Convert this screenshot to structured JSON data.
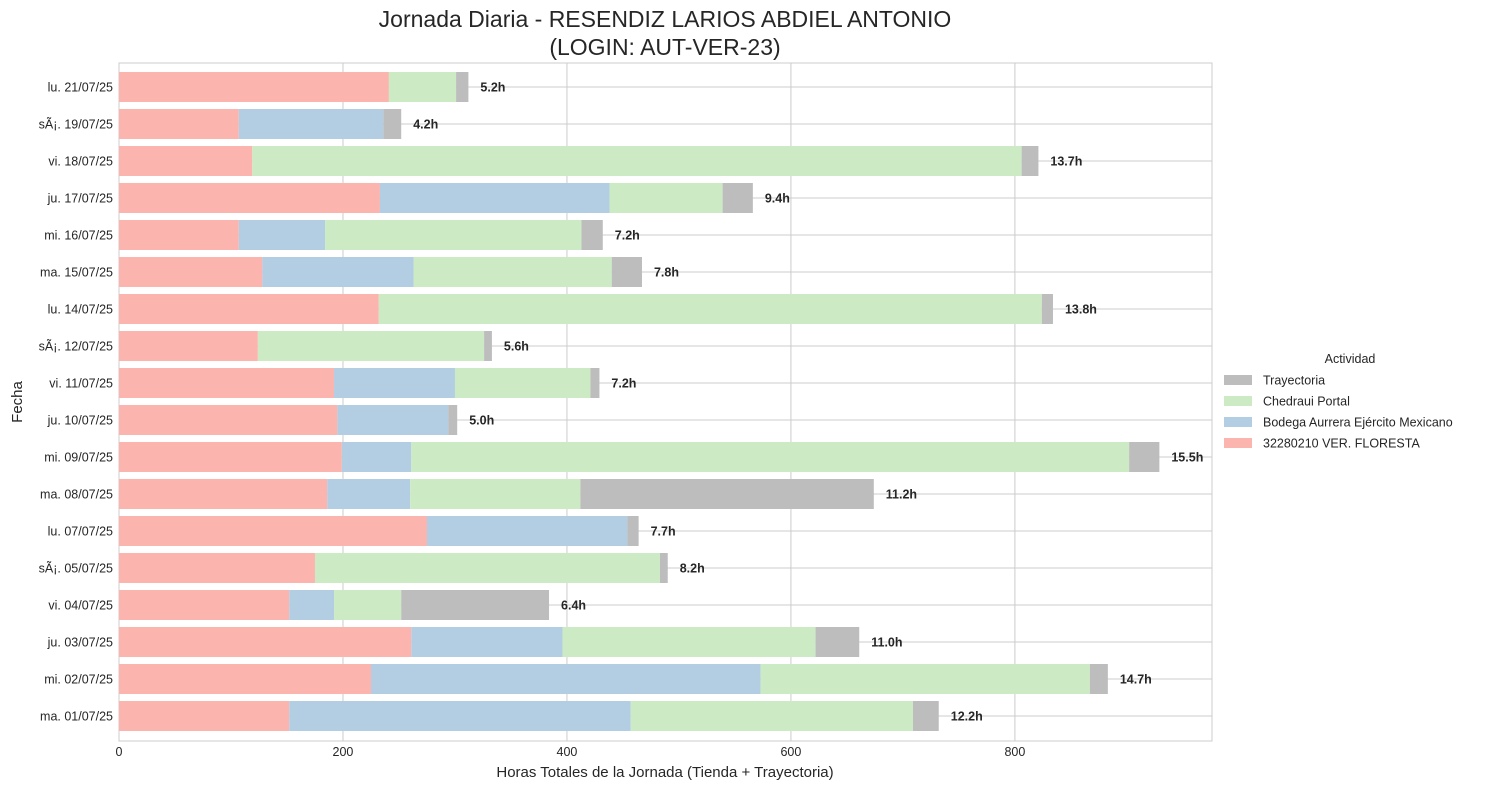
{
  "chart_data": {
    "type": "bar",
    "orientation": "horizontal",
    "stacked": true,
    "title_line1": "Jornada Diaria - RESENDIZ LARIOS ABDIEL ANTONIO",
    "title_line2": "(LOGIN: AUT-VER-23)",
    "xlabel": "Horas Totales de la Jornada (Tienda + Trayectoria)",
    "ylabel": "Fecha",
    "xlim": [
      0,
      976
    ],
    "xticks": [
      0,
      200,
      400,
      600,
      800
    ],
    "grid": true,
    "legend": {
      "title": "Actividad",
      "position": "center-right outside",
      "entries": [
        "Trayectoria",
        "Chedraui Portal",
        "Bodega Aurrera Ejército Mexicano",
        "32280210 VER. FLORESTA"
      ]
    },
    "colors": {
      "32280210 VER. FLORESTA": "#fbb4ae",
      "Bodega Aurrera Ejército Mexicano": "#b3cde3",
      "Chedraui Portal": "#ccebc5",
      "Trayectoria": "#bdbdbd"
    },
    "stack_order": [
      "32280210 VER. FLORESTA",
      "Bodega Aurrera Ejército Mexicano",
      "Chedraui Portal",
      "Trayectoria"
    ],
    "categories": [
      "lu. 21/07/25",
      "sÃ¡. 19/07/25",
      "vi. 18/07/25",
      "ju. 17/07/25",
      "mi. 16/07/25",
      "ma. 15/07/25",
      "lu. 14/07/25",
      "sÃ¡. 12/07/25",
      "vi. 11/07/25",
      "ju. 10/07/25",
      "mi. 09/07/25",
      "ma. 08/07/25",
      "lu. 07/07/25",
      "sÃ¡. 05/07/25",
      "vi. 04/07/25",
      "ju. 03/07/25",
      "mi. 02/07/25",
      "ma. 01/07/25"
    ],
    "series": [
      {
        "name": "32280210 VER. FLORESTA",
        "values": [
          241,
          107,
          119,
          233,
          107,
          128,
          232,
          124,
          192,
          195,
          199,
          186,
          275,
          175,
          152,
          261,
          225,
          152
        ]
      },
      {
        "name": "Bodega Aurrera Ejército Mexicano",
        "values": [
          0,
          129,
          0,
          205,
          77,
          135,
          0,
          0,
          108,
          99,
          62,
          74,
          179,
          0,
          40,
          135,
          348,
          305
        ]
      },
      {
        "name": "Chedraui Portal",
        "values": [
          60,
          0,
          687,
          101,
          229,
          177,
          592,
          202,
          121,
          0,
          641,
          152,
          0,
          308,
          60,
          226,
          294,
          252
        ]
      },
      {
        "name": "Trayectoria",
        "values": [
          11,
          16,
          15,
          27,
          19,
          27,
          10,
          7,
          8,
          8,
          27,
          262,
          10,
          7,
          132,
          39,
          16,
          23
        ]
      }
    ],
    "totals": [
      "5.2h",
      "4.2h",
      "13.7h",
      "9.4h",
      "7.2h",
      "7.8h",
      "13.8h",
      "5.6h",
      "7.2h",
      "5.0h",
      "15.5h",
      "11.2h",
      "7.7h",
      "8.2h",
      "6.4h",
      "11.0h",
      "14.7h",
      "12.2h"
    ]
  }
}
